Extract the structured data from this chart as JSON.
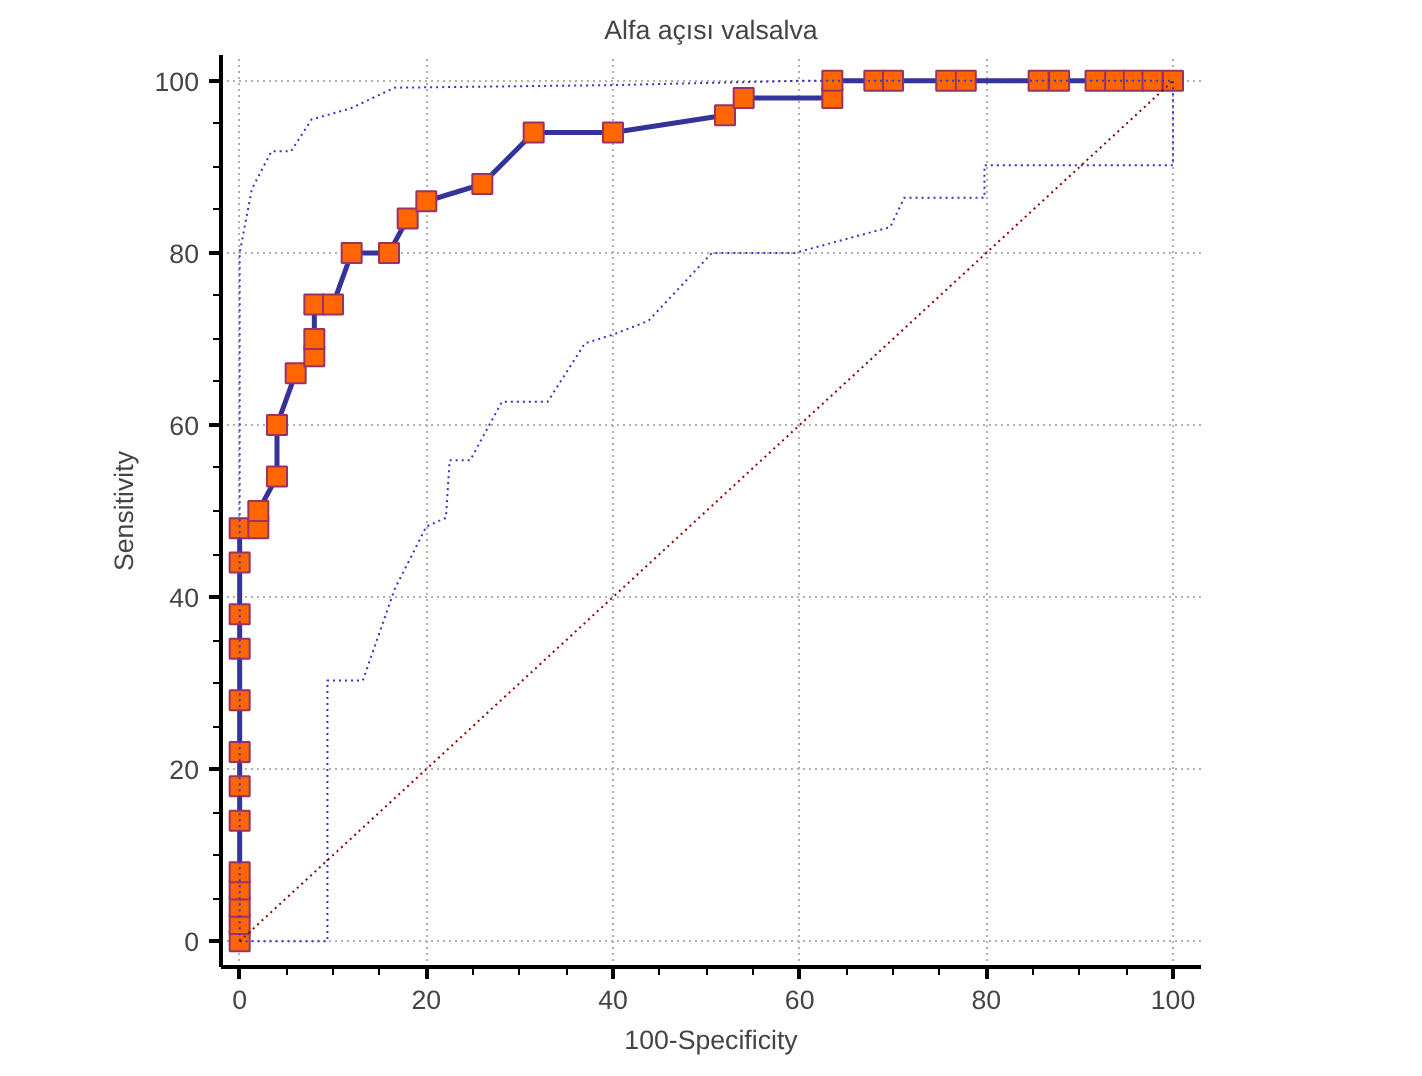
{
  "chart_data": {
    "type": "line",
    "title": "Alfa açısı valsalva",
    "xlabel": "100-Specificity",
    "ylabel": "Sensitivity",
    "xlim": [
      -2,
      103
    ],
    "ylim": [
      -3,
      103
    ],
    "xticks": [
      0,
      20,
      40,
      60,
      80,
      100
    ],
    "yticks": [
      0,
      20,
      40,
      60,
      80,
      100
    ],
    "grid": true,
    "series": [
      {
        "color": "#333399",
        "marker": "square",
        "line_style": "solid",
        "x": [
          0,
          0,
          0,
          0,
          0,
          0,
          0,
          0,
          0,
          0,
          0,
          0,
          0,
          2,
          2,
          4,
          4,
          6,
          8,
          8,
          8,
          10,
          12,
          16,
          18,
          20,
          26,
          31.5,
          40,
          52,
          54,
          63.5,
          63.5,
          68,
          70,
          75.7,
          77.8,
          85.6,
          87.8,
          91.7,
          93.8,
          95.8,
          97.8,
          100
        ],
        "values": [
          0,
          2,
          4,
          6,
          8,
          14,
          18,
          22,
          28,
          34,
          38,
          44,
          48,
          48,
          50,
          54,
          60,
          66,
          68,
          70,
          74,
          74,
          80,
          80,
          84,
          86,
          88,
          94,
          94,
          96,
          98,
          98,
          100,
          100,
          100,
          100,
          100,
          100,
          100,
          100,
          100,
          100,
          100,
          100
        ]
      },
      {
        "color": "#3333cc",
        "marker": "none",
        "line_style": "dotted",
        "x": [
          0,
          0,
          1.3,
          3.4,
          5.5,
          7.7,
          11.9,
          16.6,
          40,
          60,
          100
        ],
        "values": [
          0,
          80,
          87.4,
          91.8,
          91.8,
          95.5,
          96.8,
          99.2,
          99.5,
          100,
          100
        ]
      },
      {
        "color": "#3333cc",
        "marker": "none",
        "line_style": "dotted",
        "x": [
          0,
          9.4,
          9.4,
          13.2,
          16.6,
          18,
          20,
          22.1,
          22.5,
          24.7,
          28.1,
          33,
          37,
          40,
          43.8,
          50.6,
          59.5,
          69.7,
          71.2,
          79.8,
          79.8,
          100,
          100
        ],
        "values": [
          0,
          0,
          30.3,
          30.3,
          40.9,
          43.9,
          48.2,
          49.2,
          55.9,
          55.9,
          62.7,
          62.7,
          69.5,
          70.5,
          72.1,
          80,
          80,
          83,
          86.4,
          86.4,
          90.2,
          90.2,
          100
        ]
      },
      {
        "color": "#8b0000",
        "marker": "none",
        "line_style": "dotted",
        "x": [
          0,
          100
        ],
        "values": [
          0,
          100
        ]
      }
    ]
  }
}
